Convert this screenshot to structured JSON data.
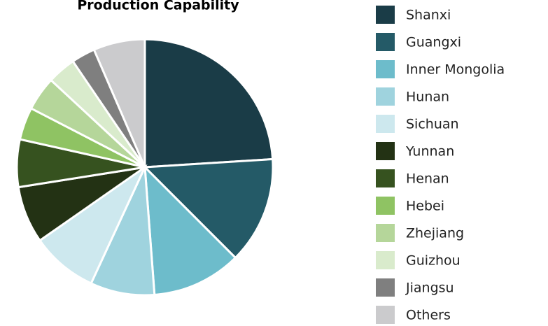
{
  "chart_data": {
    "type": "pie",
    "title": "Production Capability",
    "categories": [
      "Shanxi",
      "Guangxi",
      "Inner Mongolia",
      "Hunan",
      "Sichuan",
      "Yunnan",
      "Henan",
      "Hebei",
      "Zhejiang",
      "Guizhou",
      "Jiangsu",
      "Others"
    ],
    "values": [
      24,
      13.5,
      11.3,
      8.1,
      8.4,
      7.2,
      6,
      4.1,
      4.3,
      3.6,
      3,
      6.5
    ],
    "colors": [
      "#1a3c47",
      "#245a67",
      "#6dbccb",
      "#9fd3de",
      "#cde8ee",
      "#233214",
      "#36521f",
      "#8fc363",
      "#b5d69a",
      "#d9ebcc",
      "#7f7f7f",
      "#cbcbcd"
    ],
    "legend": "right"
  }
}
